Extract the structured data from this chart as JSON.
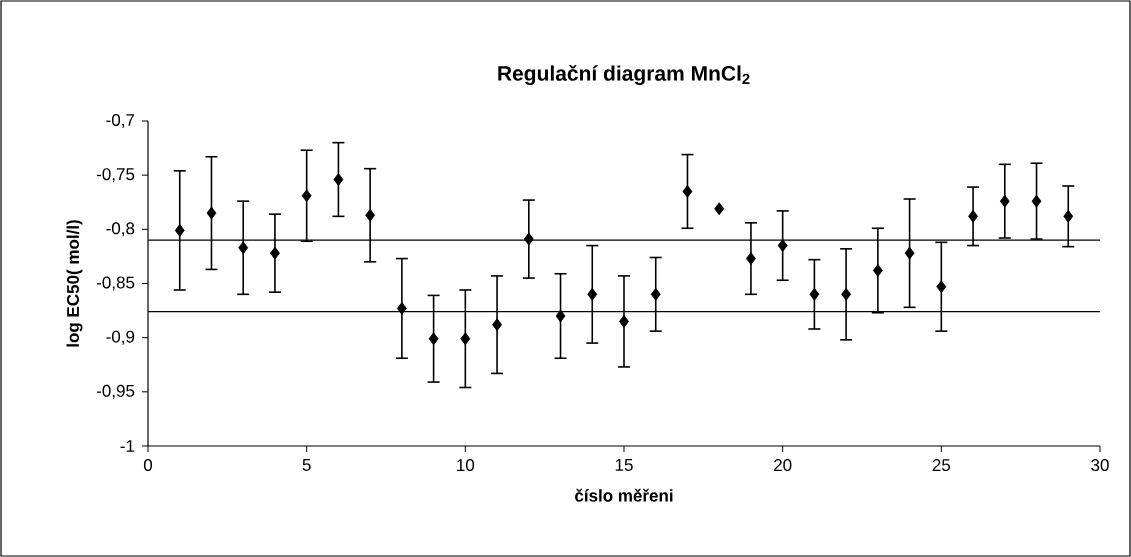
{
  "chart_data": {
    "type": "scatter",
    "title": "Regulační diagram MnCl$_{2}$",
    "xlabel": "číslo měřeni",
    "ylabel": "log EC50( mol/l)",
    "x": [
      1,
      2,
      3,
      4,
      5,
      6,
      7,
      8,
      9,
      10,
      11,
      12,
      13,
      14,
      15,
      16,
      17,
      18,
      19,
      20,
      21,
      22,
      23,
      24,
      25,
      26,
      27,
      28,
      29
    ],
    "values": [
      -0.801,
      -0.785,
      -0.817,
      -0.822,
      -0.769,
      -0.754,
      -0.787,
      -0.873,
      -0.901,
      -0.901,
      -0.888,
      -0.809,
      -0.88,
      -0.86,
      -0.885,
      -0.86,
      -0.765,
      -0.781,
      -0.827,
      -0.815,
      -0.86,
      -0.86,
      -0.838,
      -0.822,
      -0.853,
      -0.788,
      -0.774,
      -0.774,
      -0.788
    ],
    "errors": [
      0.055,
      0.052,
      0.043,
      0.036,
      0.042,
      0.034,
      0.043,
      0.046,
      0.04,
      0.045,
      0.045,
      0.036,
      0.039,
      0.045,
      0.042,
      0.034,
      0.034,
      null,
      0.033,
      0.032,
      0.032,
      0.042,
      0.039,
      0.05,
      0.041,
      0.027,
      0.034,
      0.035,
      0.028
    ],
    "color": "#000000",
    "marker": "diamond",
    "xlim": [
      0,
      30
    ],
    "ylim": [
      -1,
      -0.7
    ],
    "xticks": [
      0,
      5,
      10,
      15,
      20,
      25,
      30
    ],
    "yticks": [
      {
        "value": -1,
        "label": "-1"
      },
      {
        "value": -0.95,
        "label": "-0,95"
      },
      {
        "value": -0.9,
        "label": "-0,9"
      },
      {
        "value": -0.85,
        "label": "-0,85"
      },
      {
        "value": -0.8,
        "label": "-0,8"
      },
      {
        "value": -0.75,
        "label": "-0,75"
      },
      {
        "value": -0.7,
        "label": "-0,7"
      }
    ],
    "ref_lines": [
      {
        "axis": "y",
        "value": -0.81
      },
      {
        "axis": "y",
        "value": -0.876
      }
    ]
  }
}
